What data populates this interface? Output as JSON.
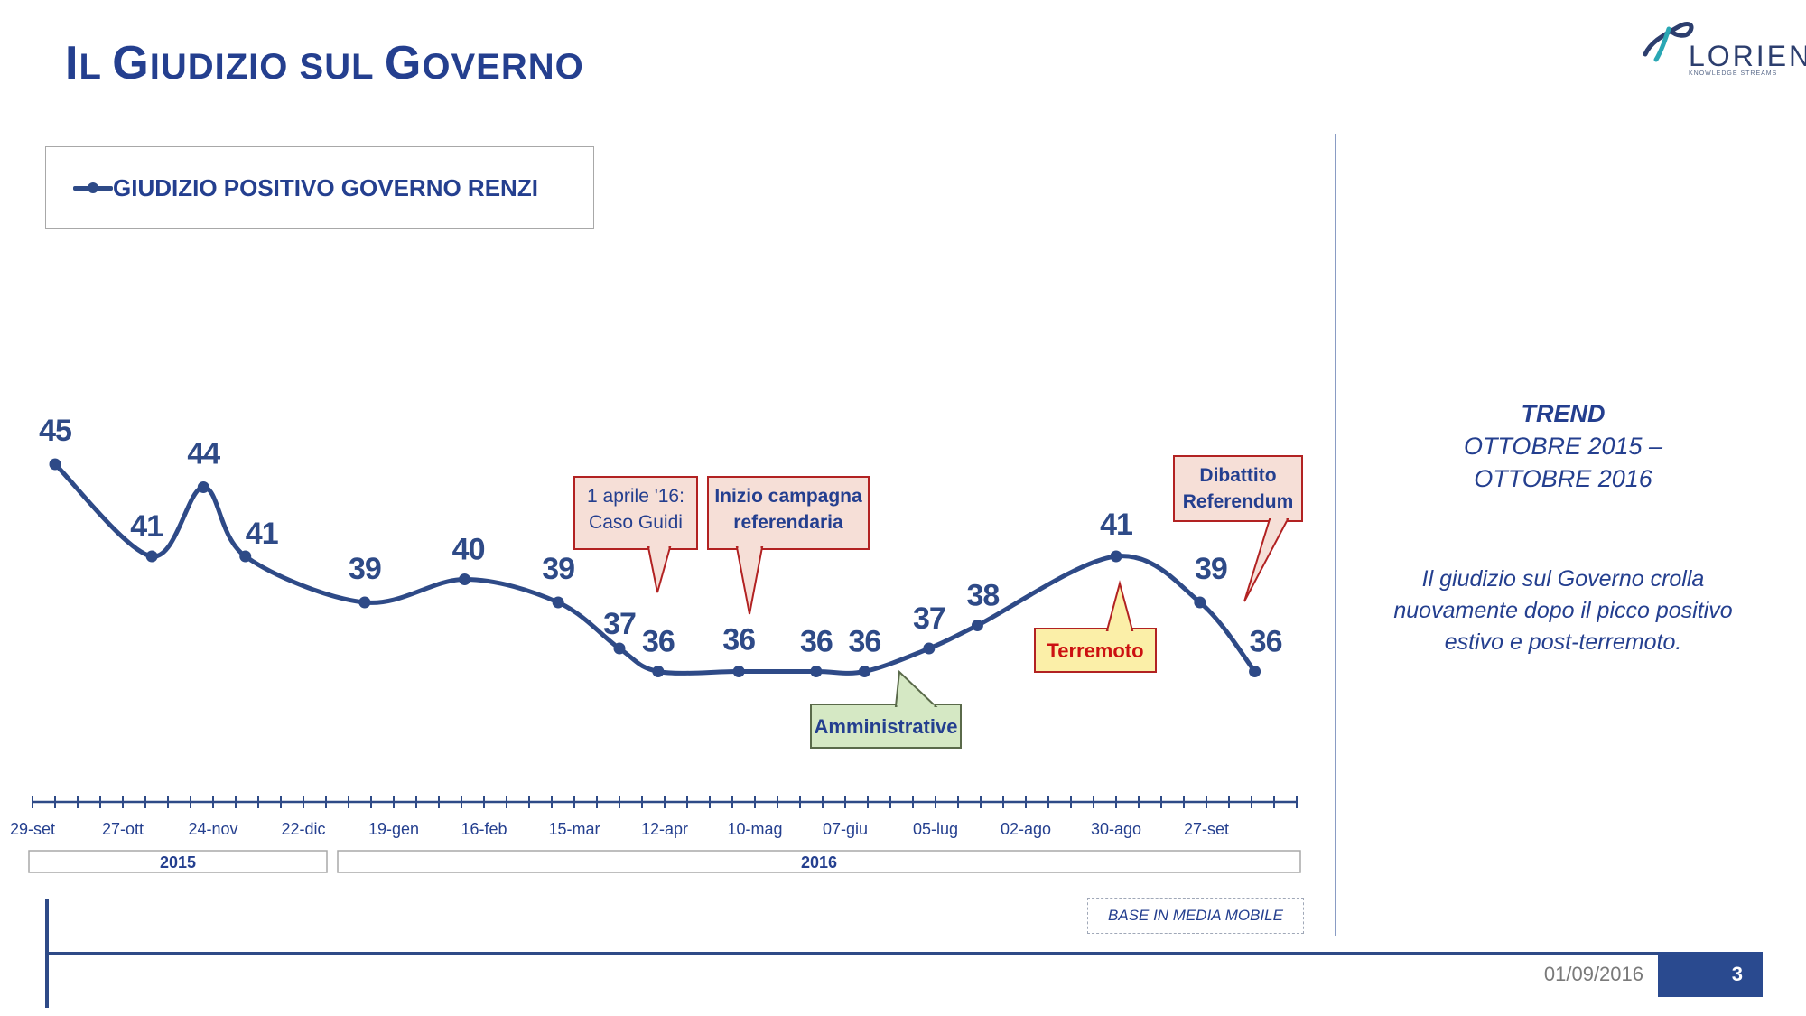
{
  "slide": {
    "title_caps": [
      "I",
      "G",
      "G"
    ],
    "title_parts": [
      "L ",
      "IUDIZIO SUL ",
      "OVERNO"
    ],
    "logo": {
      "name": "LORIEN",
      "tagline": "KNOWLEDGE STREAMS"
    },
    "base_note": "BASE IN MEDIA MOBILE",
    "date": "01/09/2016",
    "page_number": "3"
  },
  "side_panel": {
    "trend_label": "TREND",
    "period": "OTTOBRE 2015 – OTTOBRE 2016",
    "comment": "Il giudizio sul Governo crolla nuovamente dopo il picco positivo estivo e post-terremoto."
  },
  "colors": {
    "title": "#243f8f",
    "line": "#2e4a87",
    "label": "#2e4a87",
    "callout_red_border": "#b22222",
    "callout_pink_fill": "#f6dfd7",
    "callout_green_fill": "#d5e8c4",
    "callout_green_border": "#5a6a4a",
    "callout_yellow_fill": "#fbefa8",
    "terremoto_text": "#cc1111"
  },
  "chart_data": {
    "type": "line",
    "title": "",
    "xlabel": "",
    "ylabel": "",
    "legend": "top-left",
    "grid": false,
    "x_tick_labels": [
      "29-set",
      "27-ott",
      "24-nov",
      "22-dic",
      "19-gen",
      "16-feb",
      "15-mar",
      "12-apr",
      "10-mag",
      "07-giu",
      "05-lug",
      "02-ago",
      "30-ago",
      "27-set"
    ],
    "year_bands": [
      {
        "label": "2015",
        "from": "29-set",
        "to": "22-dic"
      },
      {
        "label": "2016",
        "from": "19-gen",
        "to": "27-set"
      }
    ],
    "series": [
      {
        "name": "GIUDIZIO POSITIVO GOVERNO RENZI",
        "points": [
          {
            "x": "2015-10-06",
            "y": 45
          },
          {
            "x": "2015-11-05",
            "y": 41
          },
          {
            "x": "2015-11-21",
            "y": 44
          },
          {
            "x": "2015-12-04",
            "y": 41
          },
          {
            "x": "2016-01-10",
            "y": 39
          },
          {
            "x": "2016-02-10",
            "y": 40
          },
          {
            "x": "2016-03-10",
            "y": 39
          },
          {
            "x": "2016-03-29",
            "y": 37
          },
          {
            "x": "2016-04-10",
            "y": 36
          },
          {
            "x": "2016-05-05",
            "y": 36
          },
          {
            "x": "2016-05-29",
            "y": 36
          },
          {
            "x": "2016-06-13",
            "y": 36
          },
          {
            "x": "2016-07-03",
            "y": 37
          },
          {
            "x": "2016-07-18",
            "y": 38
          },
          {
            "x": "2016-08-30",
            "y": 41
          },
          {
            "x": "2016-09-25",
            "y": 39
          },
          {
            "x": "2016-10-12",
            "y": 36
          }
        ],
        "display_values": [
          45,
          41,
          44,
          41,
          39,
          40,
          39,
          37,
          36,
          36,
          36,
          36,
          37,
          38,
          41,
          39,
          36
        ]
      }
    ],
    "annotations": [
      {
        "text": "1 aprile '16: Caso Guidi",
        "style": "pink"
      },
      {
        "text": "Inizio campagna referendaria",
        "style": "pink"
      },
      {
        "text": "Amministrative",
        "style": "green"
      },
      {
        "text": "Terremoto",
        "style": "yellow"
      },
      {
        "text": "Dibattito Referendum",
        "style": "pink"
      }
    ]
  }
}
